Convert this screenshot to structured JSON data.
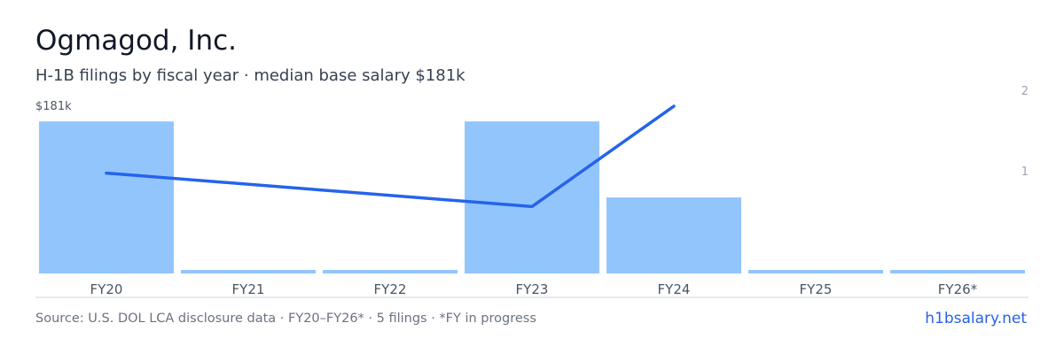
{
  "header": {
    "title": "Ogmagod, Inc.",
    "subtitle": "H-1B filings by fiscal year · median base salary $181k"
  },
  "footer": {
    "source": "Source: U.S. DOL LCA disclosure data · FY20–FY26* · 5 filings · *FY in progress",
    "site": "h1bsalary.net"
  },
  "colors": {
    "bar": "#93c5fd",
    "line": "#2563eb",
    "axis_text": "#9ca3af",
    "baseline": "#d1d5db",
    "tick_text": "#4b5563"
  },
  "chart_data": {
    "type": "bar",
    "categories": [
      "FY20",
      "FY21",
      "FY22",
      "FY23",
      "FY24",
      "FY25",
      "FY26*"
    ],
    "series": [
      {
        "type": "bar",
        "axis": "right",
        "values": [
          2,
          0,
          0,
          2,
          1,
          0,
          0
        ]
      },
      {
        "type": "line",
        "axis": "left",
        "points": [
          {
            "category": "FY20",
            "value": 181
          },
          {
            "category": "FY23",
            "value": 180
          },
          {
            "category": "FY24",
            "value": 183
          }
        ]
      }
    ],
    "left_axis": {
      "tick_labels": [
        "$181k"
      ],
      "range": [
        178,
        183
      ]
    },
    "right_axis": {
      "tick_labels": [
        "2",
        "1"
      ],
      "range": [
        0,
        2.2
      ]
    },
    "grid": false,
    "legend": "none"
  }
}
